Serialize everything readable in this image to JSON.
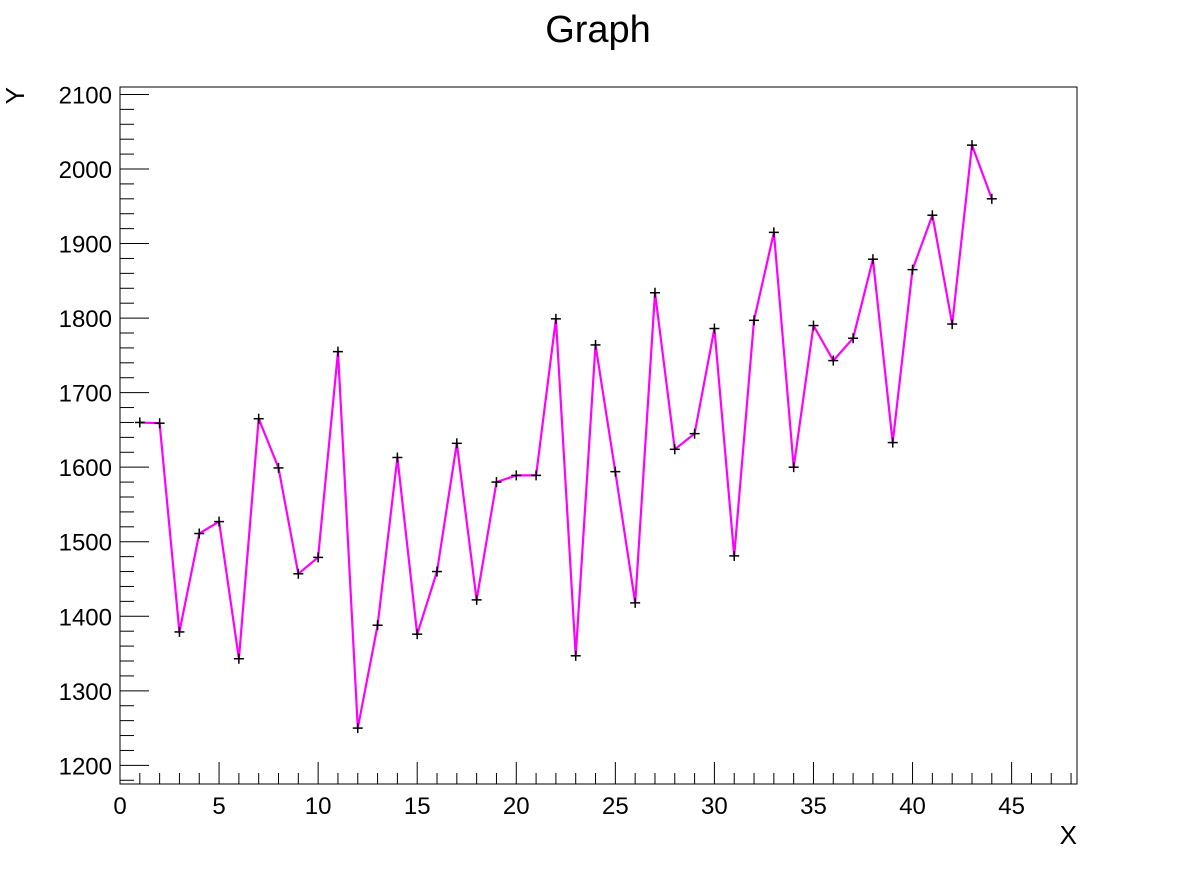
{
  "chart_data": {
    "type": "line",
    "title": "Graph",
    "xlabel": "X",
    "ylabel": "Y",
    "xlim": [
      0,
      48.3
    ],
    "ylim": [
      1175,
      2110
    ],
    "x_ticks": [
      0,
      5,
      10,
      15,
      20,
      25,
      30,
      35,
      40,
      45
    ],
    "x_tick_labels": [
      "0",
      "5",
      "10",
      "15",
      "20",
      "25",
      "30",
      "35",
      "40",
      "45"
    ],
    "y_ticks": [
      1200,
      1300,
      1400,
      1500,
      1600,
      1700,
      1800,
      1900,
      2000,
      2100
    ],
    "y_tick_labels": [
      "1200",
      "1300",
      "1400",
      "1500",
      "1600",
      "1700",
      "1800",
      "1900",
      "2000",
      "2100"
    ],
    "grid": false,
    "legend": "none",
    "line_color": "#ff00ff",
    "marker_color": "#000000",
    "marker": "plus",
    "series": [
      {
        "x": [
          1,
          2,
          3,
          4,
          5,
          6,
          7,
          8,
          9,
          10,
          11,
          12,
          13,
          14,
          15,
          16,
          17,
          18,
          19,
          20,
          21,
          22,
          23,
          24,
          25,
          26,
          27,
          28,
          29,
          30,
          31,
          32,
          33,
          34,
          35,
          36,
          37,
          38,
          39,
          40,
          41,
          42,
          43,
          44
        ],
        "values": [
          1660,
          1659,
          1379,
          1511,
          1527,
          1343,
          1665,
          1599,
          1457,
          1479,
          1755,
          1250,
          1388,
          1613,
          1376,
          1460,
          1632,
          1422,
          1580,
          1589,
          1589,
          1799,
          1347,
          1764,
          1594,
          1418,
          1834,
          1624,
          1645,
          1786,
          1481,
          1797,
          1915,
          1600,
          1790,
          1743,
          1773,
          1879,
          1633,
          1865,
          1938,
          1792,
          2032,
          1960
        ]
      }
    ]
  }
}
